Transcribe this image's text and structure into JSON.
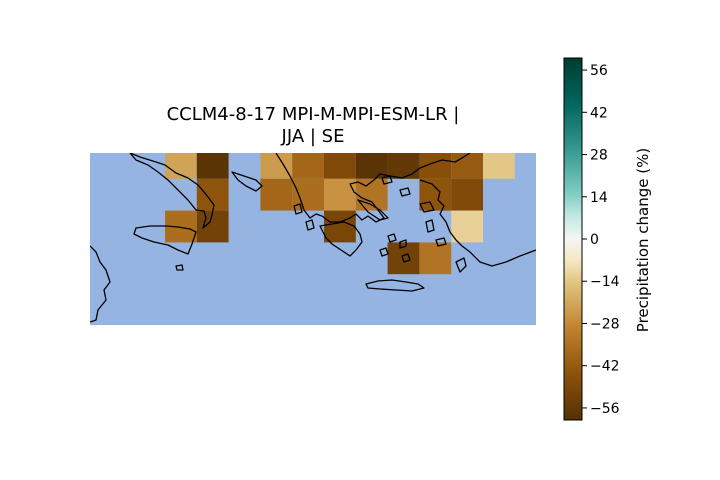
{
  "title_lines": [
    "CCLM4-8-17 MPI-M-MPI-ESM-LR |",
    "JJA | SE"
  ],
  "colors": {
    "sea": "#95b4e1",
    "coast": "#000000",
    "nodata": "#95b4e1"
  },
  "colorbar": {
    "label": "Precipitation change (%)",
    "range": [
      -60,
      60
    ],
    "ticks": [
      56,
      42,
      28,
      14,
      0,
      -14,
      -28,
      -42,
      -56
    ],
    "tick_labels": [
      "56",
      "42",
      "28",
      "14",
      "0",
      "−14",
      "−28",
      "−42",
      "−56"
    ],
    "colormap_stops": [
      {
        "v": -60,
        "c": "#543005"
      },
      {
        "v": -45,
        "c": "#8c510a"
      },
      {
        "v": -30,
        "c": "#bf812d"
      },
      {
        "v": -15,
        "c": "#dfc27d"
      },
      {
        "v": -7,
        "c": "#f6e8c3"
      },
      {
        "v": 0,
        "c": "#f5f5f5"
      },
      {
        "v": 7,
        "c": "#c7eae5"
      },
      {
        "v": 15,
        "c": "#80cdc1"
      },
      {
        "v": 30,
        "c": "#35978f"
      },
      {
        "v": 45,
        "c": "#01665e"
      },
      {
        "v": 60,
        "c": "#003c30"
      }
    ]
  },
  "chart_data": {
    "type": "heatmap",
    "title": "CCLM4-8-17 MPI-M-MPI-ESM-LR | JJA | SE",
    "variable": "Precipitation change (%)",
    "vmin": -60,
    "vmax": 60,
    "grid_cells": [
      {
        "col": 0,
        "row": 0,
        "value": -22
      },
      {
        "col": 1,
        "row": 0,
        "value": -58
      },
      {
        "col": 3,
        "row": 0,
        "value": -24
      },
      {
        "col": 4,
        "row": 0,
        "value": -38
      },
      {
        "col": 5,
        "row": 0,
        "value": -48
      },
      {
        "col": 6,
        "row": 0,
        "value": -58
      },
      {
        "col": 7,
        "row": 0,
        "value": -56
      },
      {
        "col": 8,
        "row": 0,
        "value": -46
      },
      {
        "col": 9,
        "row": 0,
        "value": -42
      },
      {
        "col": 10,
        "row": 0,
        "value": -14
      },
      {
        "col": 1,
        "row": 1,
        "value": -44
      },
      {
        "col": 3,
        "row": 1,
        "value": -38
      },
      {
        "col": 4,
        "row": 1,
        "value": -36
      },
      {
        "col": 5,
        "row": 1,
        "value": -26
      },
      {
        "col": 6,
        "row": 1,
        "value": -34
      },
      {
        "col": 8,
        "row": 1,
        "value": -44
      },
      {
        "col": 9,
        "row": 1,
        "value": -48
      },
      {
        "col": 0,
        "row": 2,
        "value": -36
      },
      {
        "col": 1,
        "row": 2,
        "value": -52
      },
      {
        "col": 5,
        "row": 2,
        "value": -50
      },
      {
        "col": 9,
        "row": 2,
        "value": -12
      },
      {
        "col": 7,
        "row": 3,
        "value": -52
      },
      {
        "col": 8,
        "row": 3,
        "value": -34
      }
    ]
  }
}
